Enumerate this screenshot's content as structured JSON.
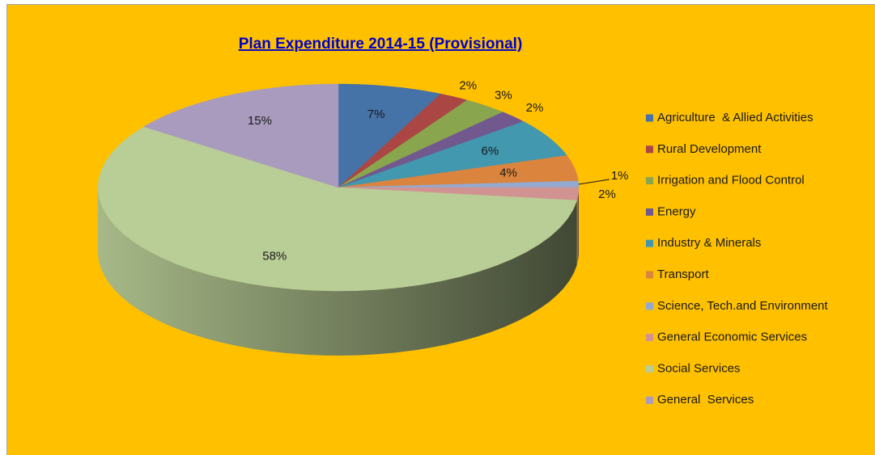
{
  "chart_data": {
    "type": "pie",
    "title": "Plan Expenditure 2014-15 (Provisional)",
    "categories": [
      "Agriculture  & Allied Activities",
      "Rural Development",
      "Irrigation and Flood Control",
      "Energy",
      "Industry & Minerals",
      "Transport",
      "Science, Tech.and Environment",
      "General Economic Services",
      "Social Services",
      "General  Services"
    ],
    "values": [
      7,
      2,
      3,
      2,
      6,
      4,
      1,
      2,
      58,
      15
    ],
    "value_labels": [
      "7%",
      "2%",
      "3%",
      "2%",
      "6%",
      "4%",
      "1%",
      "2%",
      "58%",
      "15%"
    ],
    "colors": [
      "#4572a7",
      "#aa4643",
      "#89a54e",
      "#71588f",
      "#4198af",
      "#db843d",
      "#93a9cf",
      "#d19392",
      "#b9cd96",
      "#a99bbd"
    ],
    "legend": "right"
  }
}
